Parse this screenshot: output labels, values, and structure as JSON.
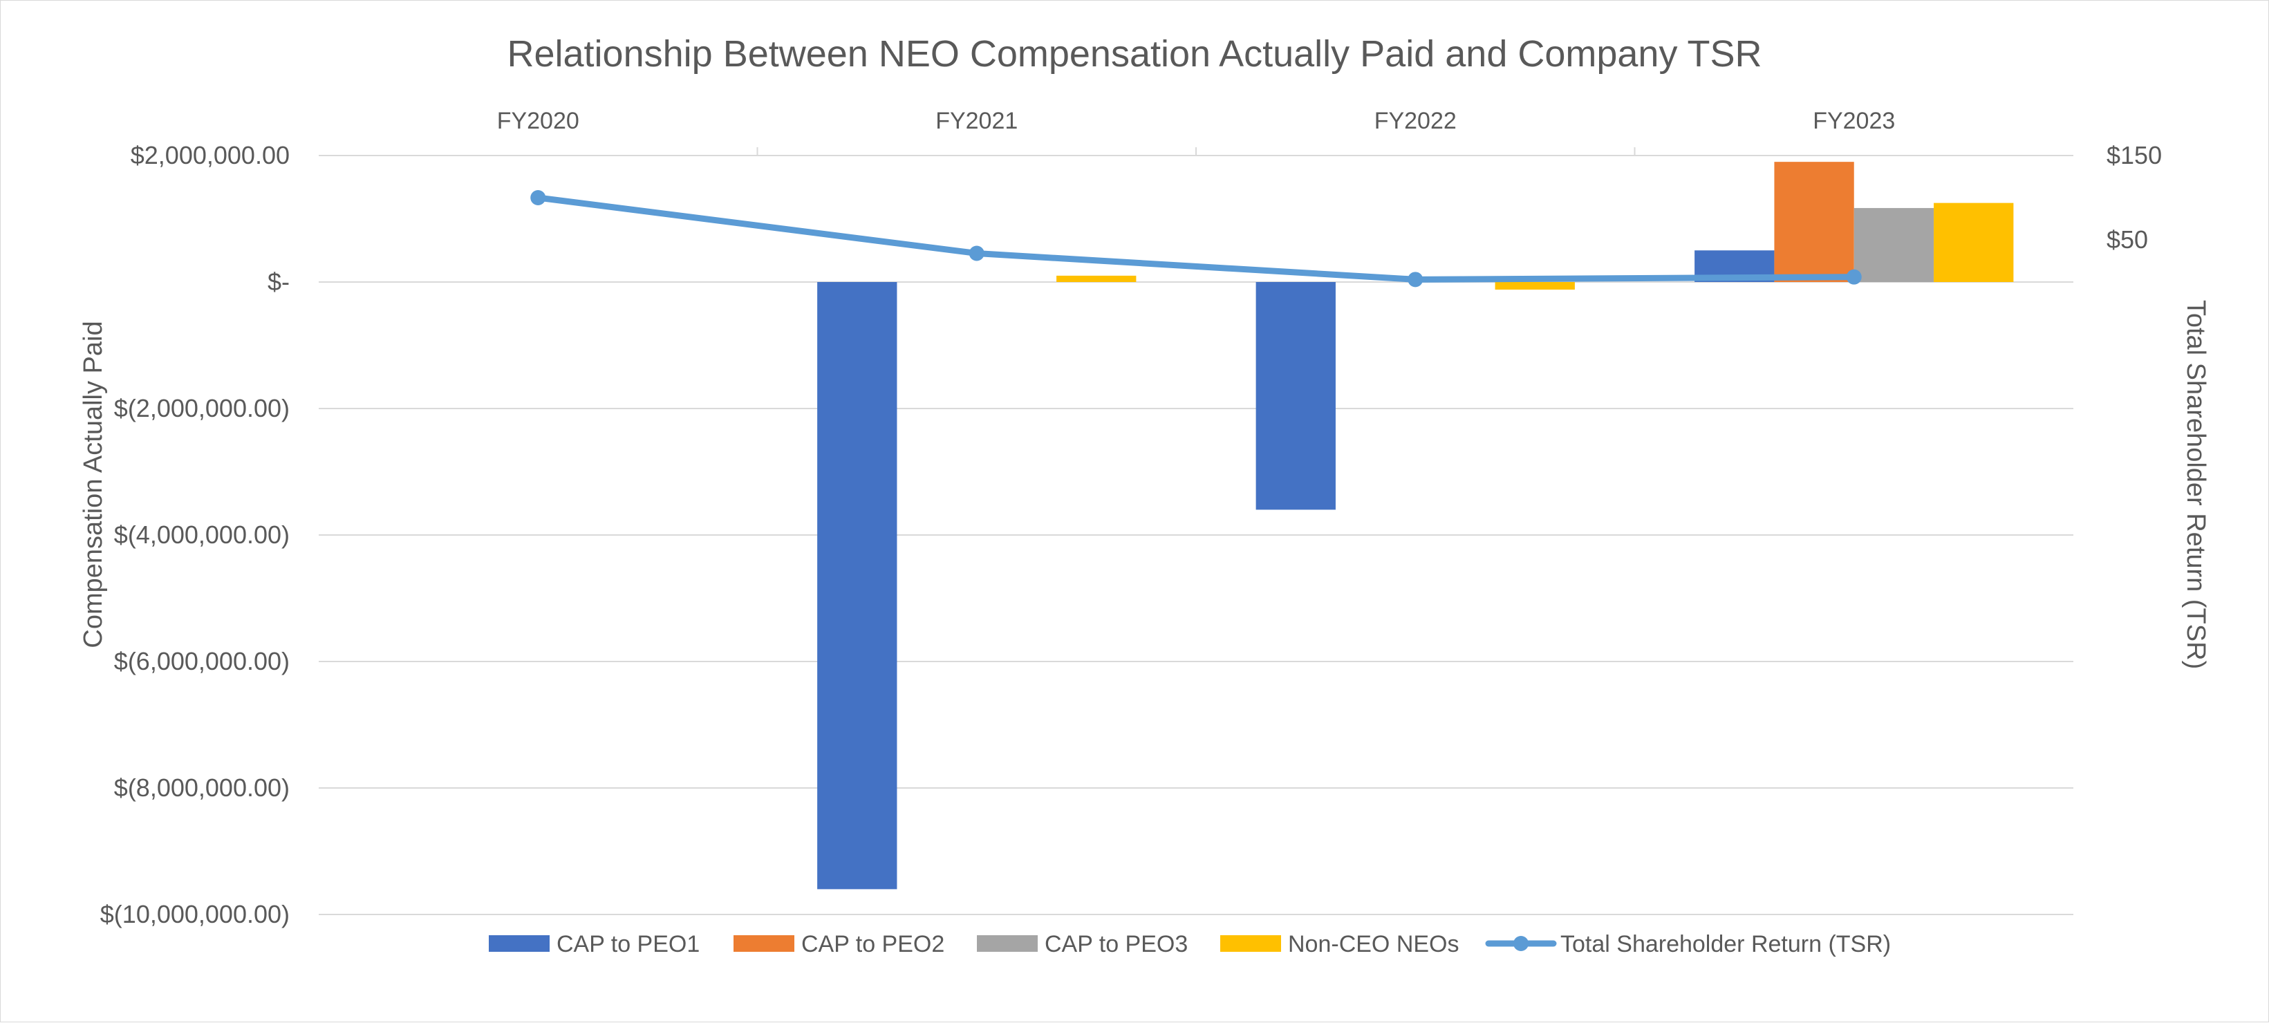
{
  "chart_data": {
    "type": "bar",
    "title": "Relationship Between NEO Compensation Actually Paid and Company TSR",
    "categories": [
      "FY2020",
      "FY2021",
      "FY2022",
      "FY2023"
    ],
    "ylabel": "Compensation Actually Paid",
    "y2label": "Total Shareholder Return (TSR)",
    "ylim": [
      -10000000,
      2000000
    ],
    "y_ticks": [
      2000000,
      0,
      -2000000,
      -4000000,
      -6000000,
      -8000000,
      -10000000
    ],
    "y_tick_labels": [
      "$2,000,000.00",
      "$-",
      "$(2,000,000.00)",
      "$(4,000,000.00)",
      "$(6,000,000.00)",
      "$(8,000,000.00)",
      "$(10,000,000.00)"
    ],
    "y2_ticks": [
      150,
      50
    ],
    "y2_tick_labels": [
      "$150",
      "$50"
    ],
    "category_axis_position": "top",
    "grid": true,
    "legend_position": "bottom",
    "series": [
      {
        "name": "CAP to PEO1",
        "type": "bar",
        "color": "#4472C4",
        "values": [
          null,
          -9600000,
          -3600000,
          500000
        ]
      },
      {
        "name": "CAP to PEO2",
        "type": "bar",
        "color": "#ED7D31",
        "values": [
          null,
          null,
          null,
          1900000
        ]
      },
      {
        "name": "CAP to PEO3",
        "type": "bar",
        "color": "#A5A5A5",
        "values": [
          null,
          null,
          null,
          1170000
        ]
      },
      {
        "name": "Non-CEO NEOs",
        "type": "bar",
        "color": "#FFC000",
        "values": [
          null,
          100000,
          -120000,
          1250000
        ]
      },
      {
        "name": "Total Shareholder Return (TSR)",
        "type": "line",
        "axis": "secondary",
        "color": "#5B9BD5",
        "values": [
          100,
          34,
          3,
          6
        ]
      }
    ]
  }
}
